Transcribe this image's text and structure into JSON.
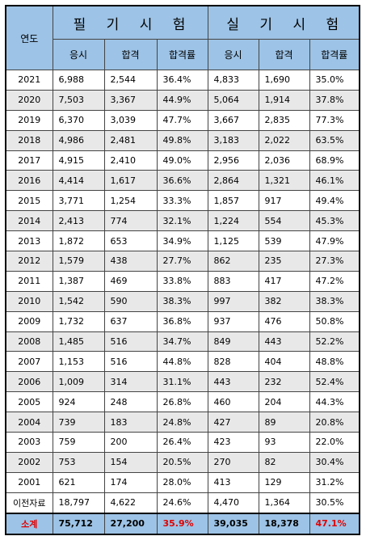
{
  "header": {
    "year_label": "연도",
    "written_exam": "필 기 시 험",
    "practical_exam": "실 기 시 험",
    "col_applicants": "응시",
    "col_passed": "합격",
    "col_rate": "합격률"
  },
  "rows": [
    {
      "year": "2021",
      "w_app": "6,988",
      "w_pass": "2,544",
      "w_rate": "36.4%",
      "p_app": "4,833",
      "p_pass": "1,690",
      "p_rate": "35.0%"
    },
    {
      "year": "2020",
      "w_app": "7,503",
      "w_pass": "3,367",
      "w_rate": "44.9%",
      "p_app": "5,064",
      "p_pass": "1,914",
      "p_rate": "37.8%"
    },
    {
      "year": "2019",
      "w_app": "6,370",
      "w_pass": "3,039",
      "w_rate": "47.7%",
      "p_app": "3,667",
      "p_pass": "2,835",
      "p_rate": "77.3%"
    },
    {
      "year": "2018",
      "w_app": "4,986",
      "w_pass": "2,481",
      "w_rate": "49.8%",
      "p_app": "3,183",
      "p_pass": "2,022",
      "p_rate": "63.5%"
    },
    {
      "year": "2017",
      "w_app": "4,915",
      "w_pass": "2,410",
      "w_rate": "49.0%",
      "p_app": "2,956",
      "p_pass": "2,036",
      "p_rate": "68.9%"
    },
    {
      "year": "2016",
      "w_app": "4,414",
      "w_pass": "1,617",
      "w_rate": "36.6%",
      "p_app": "2,864",
      "p_pass": "1,321",
      "p_rate": "46.1%"
    },
    {
      "year": "2015",
      "w_app": "3,771",
      "w_pass": "1,254",
      "w_rate": "33.3%",
      "p_app": "1,857",
      "p_pass": "917",
      "p_rate": "49.4%"
    },
    {
      "year": "2014",
      "w_app": "2,413",
      "w_pass": "774",
      "w_rate": "32.1%",
      "p_app": "1,224",
      "p_pass": "554",
      "p_rate": "45.3%"
    },
    {
      "year": "2013",
      "w_app": "1,872",
      "w_pass": "653",
      "w_rate": "34.9%",
      "p_app": "1,125",
      "p_pass": "539",
      "p_rate": "47.9%"
    },
    {
      "year": "2012",
      "w_app": "1,579",
      "w_pass": "438",
      "w_rate": "27.7%",
      "p_app": "862",
      "p_pass": "235",
      "p_rate": "27.3%"
    },
    {
      "year": "2011",
      "w_app": "1,387",
      "w_pass": "469",
      "w_rate": "33.8%",
      "p_app": "883",
      "p_pass": "417",
      "p_rate": "47.2%"
    },
    {
      "year": "2010",
      "w_app": "1,542",
      "w_pass": "590",
      "w_rate": "38.3%",
      "p_app": "997",
      "p_pass": "382",
      "p_rate": "38.3%"
    },
    {
      "year": "2009",
      "w_app": "1,732",
      "w_pass": "637",
      "w_rate": "36.8%",
      "p_app": "937",
      "p_pass": "476",
      "p_rate": "50.8%"
    },
    {
      "year": "2008",
      "w_app": "1,485",
      "w_pass": "516",
      "w_rate": "34.7%",
      "p_app": "849",
      "p_pass": "443",
      "p_rate": "52.2%"
    },
    {
      "year": "2007",
      "w_app": "1,153",
      "w_pass": "516",
      "w_rate": "44.8%",
      "p_app": "828",
      "p_pass": "404",
      "p_rate": "48.8%"
    },
    {
      "year": "2006",
      "w_app": "1,009",
      "w_pass": "314",
      "w_rate": "31.1%",
      "p_app": "443",
      "p_pass": "232",
      "p_rate": "52.4%"
    },
    {
      "year": "2005",
      "w_app": "924",
      "w_pass": "248",
      "w_rate": "26.8%",
      "p_app": "460",
      "p_pass": "204",
      "p_rate": "44.3%"
    },
    {
      "year": "2004",
      "w_app": "739",
      "w_pass": "183",
      "w_rate": "24.8%",
      "p_app": "427",
      "p_pass": "89",
      "p_rate": "20.8%"
    },
    {
      "year": "2003",
      "w_app": "759",
      "w_pass": "200",
      "w_rate": "26.4%",
      "p_app": "423",
      "p_pass": "93",
      "p_rate": "22.0%"
    },
    {
      "year": "2002",
      "w_app": "753",
      "w_pass": "154",
      "w_rate": "20.5%",
      "p_app": "270",
      "p_pass": "82",
      "p_rate": "30.4%"
    },
    {
      "year": "2001",
      "w_app": "621",
      "w_pass": "174",
      "w_rate": "28.0%",
      "p_app": "413",
      "p_pass": "129",
      "p_rate": "31.2%"
    },
    {
      "year": "이전자료",
      "w_app": "18,797",
      "w_pass": "4,622",
      "w_rate": "24.6%",
      "p_app": "4,470",
      "p_pass": "1,364",
      "p_rate": "30.5%"
    }
  ],
  "total": {
    "year": "소계",
    "w_app": "75,712",
    "w_pass": "27,200",
    "w_rate": "35.9%",
    "p_app": "39,035",
    "p_pass": "18,378",
    "p_rate": "47.1%"
  },
  "colors": {
    "header_bg": "#9dc3e6",
    "stripe_bg": "#e8e8e8",
    "highlight": "#e00000"
  }
}
